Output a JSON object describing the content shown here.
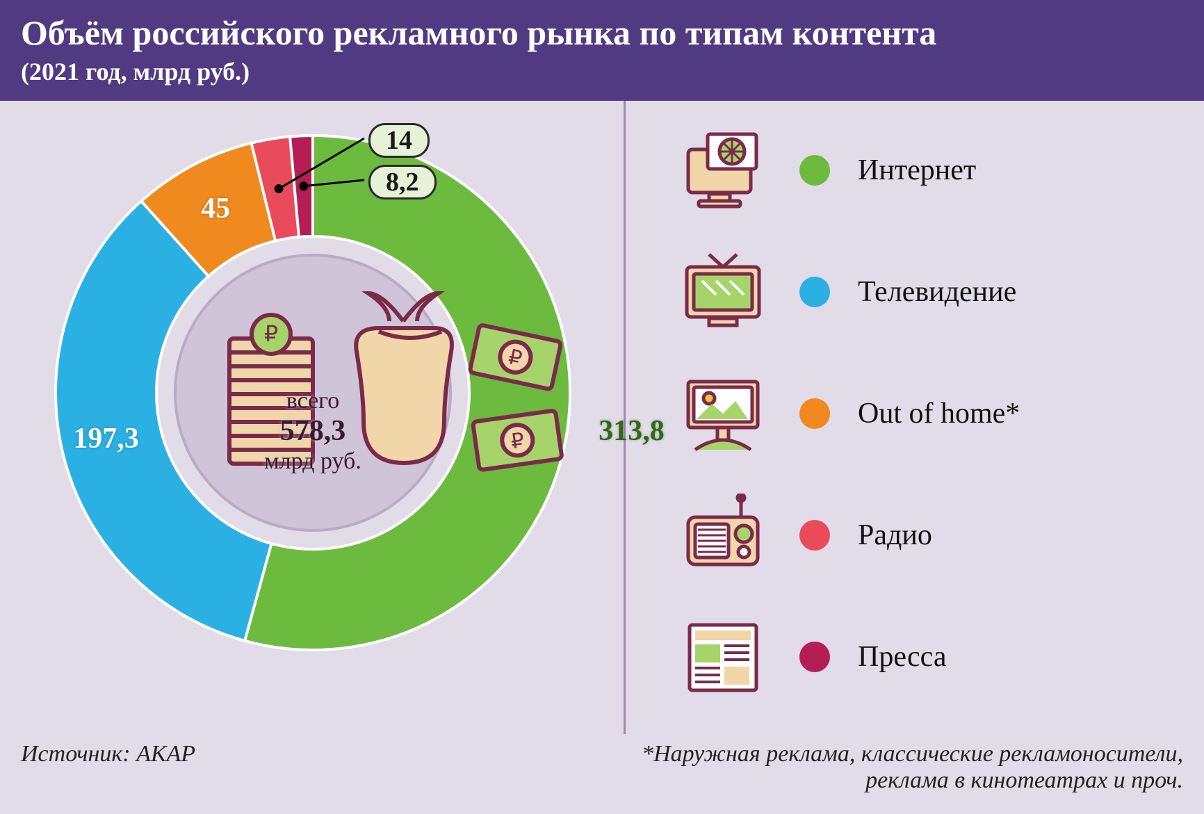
{
  "header": {
    "title": "Объём российского рекламного рынка по типам контента",
    "subtitle": "(2021 год, млрд руб.)"
  },
  "chart": {
    "type": "donut",
    "total_label": "всего",
    "total_value": "578,3",
    "total_unit": "млрд руб.",
    "background_color": "#e1dce8",
    "inner_disc_color": "#cfc4d8",
    "inner_border_color": "#b9abc5",
    "ring_outer_r": 370,
    "ring_inner_r": 225,
    "slice_gap_deg": 0,
    "segments": [
      {
        "key": "internet",
        "label": "Интернет",
        "value": 313.8,
        "display": "313,8",
        "color": "#6cbb3f"
      },
      {
        "key": "tv",
        "label": "Телевидение",
        "value": 197.3,
        "display": "197,3",
        "color": "#2bb0e4"
      },
      {
        "key": "ooh",
        "label": "Out of home*",
        "value": 45,
        "display": "45",
        "color": "#f08a1e"
      },
      {
        "key": "radio",
        "label": "Радио",
        "value": 14,
        "display": "14",
        "color": "#e94b5a"
      },
      {
        "key": "press",
        "label": "Пресса",
        "value": 8.2,
        "display": "8,2",
        "color": "#b41e55"
      }
    ],
    "callout_pill_bg": "#e6f1d8",
    "callout_pill_border": "#2a2a2a"
  },
  "legend": {
    "icon_stroke": "#7a2a4a",
    "icon_fill": "#f0d6a8",
    "icon_accent": "#a6d46a",
    "items": [
      {
        "key": "internet",
        "label": "Интернет",
        "dot": "#6cbb3f",
        "icon": "globe-monitor"
      },
      {
        "key": "tv",
        "label": "Телевидение",
        "dot": "#2bb0e4",
        "icon": "tv"
      },
      {
        "key": "ooh",
        "label": "Out of home*",
        "dot": "#f08a1e",
        "icon": "billboard"
      },
      {
        "key": "radio",
        "label": "Радио",
        "dot": "#e94b5a",
        "icon": "radio"
      },
      {
        "key": "press",
        "label": "Пресса",
        "dot": "#b41e55",
        "icon": "newspaper"
      }
    ]
  },
  "footer": {
    "source": "Источник: АКАР",
    "note": "*Наружная реклама, классические рекламоносители, реклама в кинотеатрах и проч."
  },
  "palette": {
    "header_bg": "#503a82",
    "divider": "#a084b0"
  }
}
